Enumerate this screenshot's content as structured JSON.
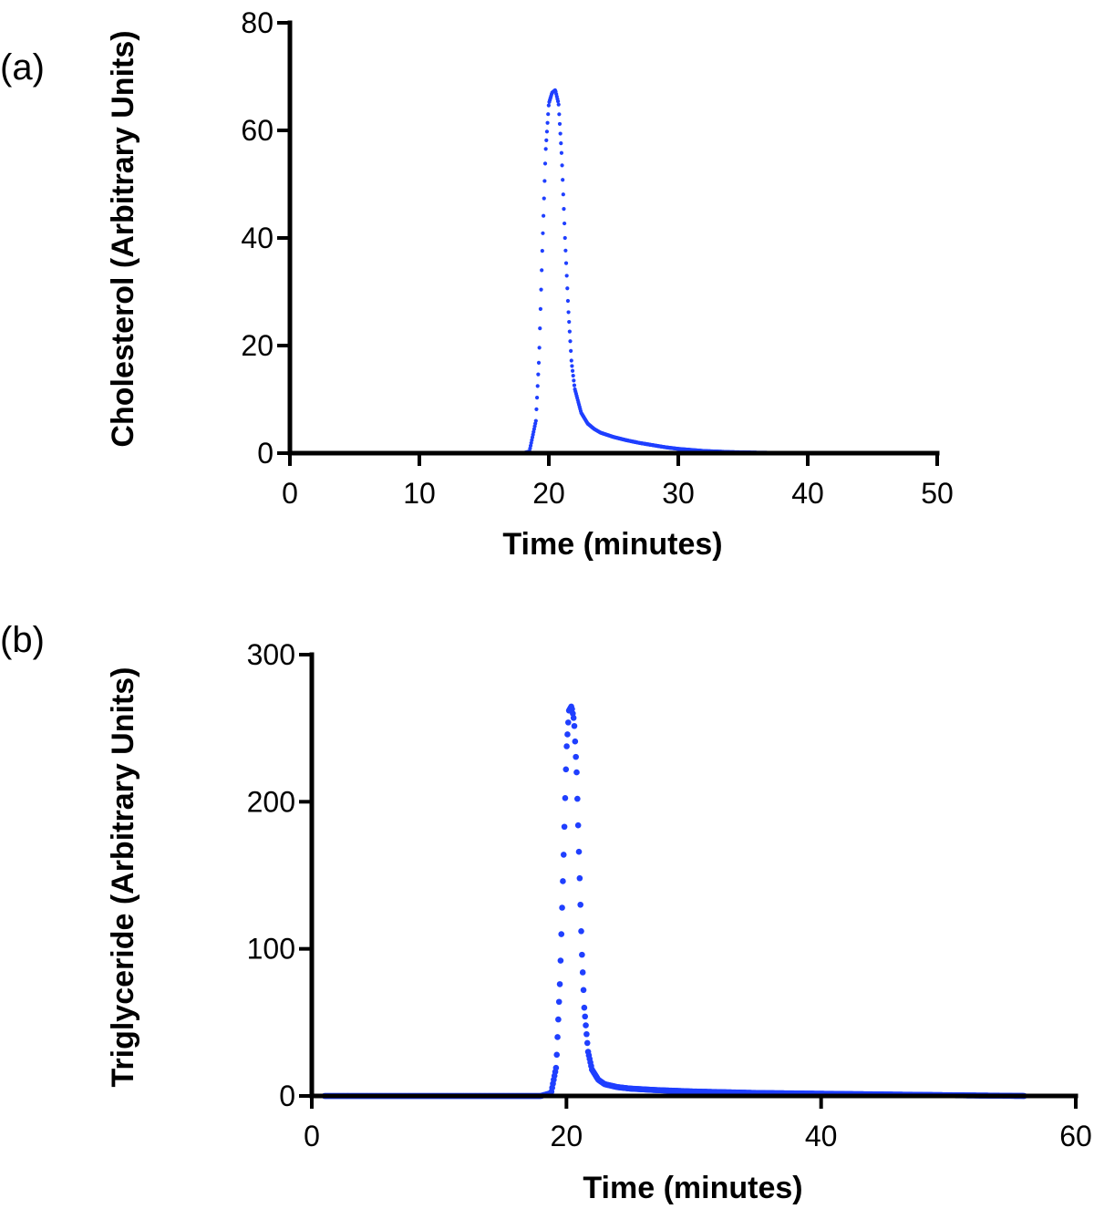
{
  "figure": {
    "panels": [
      {
        "label": "(a)"
      },
      {
        "label": "(b)"
      }
    ]
  },
  "chart_data": [
    {
      "type": "scatter",
      "panel": "(a)",
      "title": "",
      "xlabel": "Time (minutes)",
      "ylabel": "Cholesterol (Arbitrary Units)",
      "xlim": [
        0,
        50
      ],
      "ylim": [
        0,
        80
      ],
      "xticks": [
        0,
        10,
        20,
        30,
        40,
        50
      ],
      "yticks": [
        0,
        20,
        40,
        60,
        80
      ],
      "grid": false,
      "legend": "none",
      "color": "#1f3fff",
      "series": [
        {
          "name": "Cholesterol",
          "peak_time": 20.5,
          "peak_value": 67.5,
          "x": [
            10,
            12,
            14,
            16,
            18,
            18.5,
            19,
            19.25,
            19.5,
            19.75,
            20,
            20.25,
            20.5,
            20.75,
            21,
            21.25,
            21.5,
            21.75,
            22,
            22.5,
            23,
            23.5,
            24,
            25,
            26,
            27,
            28,
            29,
            30,
            32,
            34,
            36,
            38,
            40,
            41
          ],
          "y": [
            0,
            0,
            0,
            0,
            0,
            0.3,
            6,
            18,
            38,
            56,
            65,
            67,
            67.5,
            65,
            55,
            40,
            27,
            17,
            12,
            7.5,
            5.5,
            4.5,
            3.8,
            3.0,
            2.4,
            1.9,
            1.5,
            1.1,
            0.8,
            0.4,
            0.2,
            0.1,
            0.05,
            0.02,
            0
          ]
        }
      ]
    },
    {
      "type": "scatter",
      "panel": "(b)",
      "title": "",
      "xlabel": "Time (minutes)",
      "ylabel": "Triglyceride (Arbitrary Units)",
      "xlim": [
        0,
        60
      ],
      "ylim": [
        0,
        300
      ],
      "xticks": [
        0,
        20,
        40,
        60
      ],
      "yticks": [
        0,
        100,
        200,
        300
      ],
      "grid": false,
      "legend": "none",
      "color": "#1f3fff",
      "series": [
        {
          "name": "Triglyceride",
          "peak_time": 20.3,
          "peak_value": 265,
          "x": [
            1,
            5,
            10,
            15,
            18,
            18.8,
            19.2,
            19.5,
            19.8,
            20,
            20.2,
            20.4,
            20.6,
            20.8,
            21,
            21.2,
            21.4,
            21.7,
            22,
            22.5,
            23,
            24,
            25,
            27,
            30,
            35,
            40,
            45,
            50,
            56
          ],
          "y": [
            0,
            0,
            0,
            0,
            0,
            2,
            20,
            80,
            170,
            235,
            262,
            265,
            255,
            220,
            160,
            100,
            60,
            30,
            18,
            11,
            8,
            6,
            5,
            4,
            3,
            2,
            1.5,
            1,
            0.5,
            0
          ]
        }
      ]
    }
  ]
}
